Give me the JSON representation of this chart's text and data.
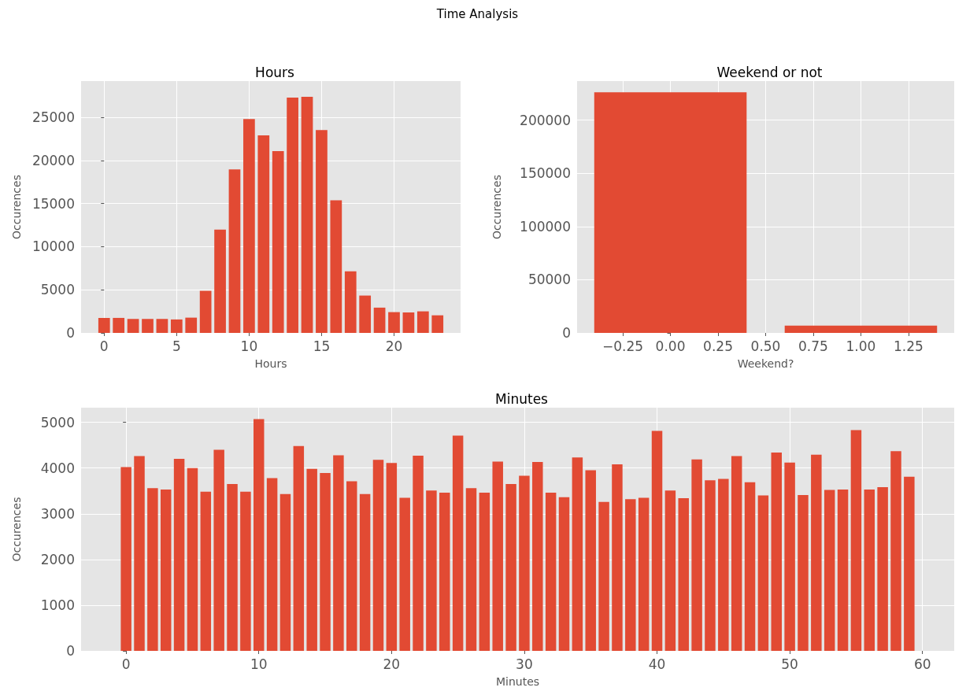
{
  "chart_data": [
    {
      "type": "other",
      "title": "Time Analysis"
    },
    {
      "type": "bar",
      "title": "Hours",
      "xlabel": "Hours",
      "ylabel": "Occurences",
      "color": "#e24a33",
      "x": [
        0,
        1,
        2,
        3,
        4,
        5,
        6,
        7,
        8,
        9,
        10,
        11,
        12,
        13,
        14,
        15,
        16,
        17,
        18,
        19,
        20,
        21,
        22,
        23
      ],
      "values": [
        1740,
        1740,
        1620,
        1620,
        1620,
        1560,
        1770,
        4880,
        11980,
        18960,
        24790,
        22900,
        21070,
        27290,
        27380,
        23510,
        15370,
        7130,
        4330,
        2930,
        2410,
        2380,
        2500,
        2040
      ],
      "xlim": [
        -1.59,
        24.59
      ],
      "xticks": [
        0,
        5,
        10,
        15,
        20
      ],
      "ylim": [
        0,
        29200
      ],
      "yticks": [
        0,
        5000,
        10000,
        15000,
        20000,
        25000
      ],
      "grid": true
    },
    {
      "type": "bar",
      "title": "Weekend or not",
      "xlabel": "Weekend?",
      "ylabel": "Occurences",
      "color": "#e24a33",
      "x": [
        0,
        1
      ],
      "values": [
        226000,
        6800
      ],
      "xlim": [
        -0.49,
        1.49
      ],
      "xticks": [
        {
          "value": -0.25,
          "label": "−0.25"
        },
        {
          "value": 0,
          "label": "0.00"
        },
        {
          "value": 0.25,
          "label": "0.25"
        },
        {
          "value": 0.5,
          "label": "0.50"
        },
        {
          "value": 0.75,
          "label": "0.75"
        },
        {
          "value": 1,
          "label": "1.00"
        },
        {
          "value": 1.25,
          "label": "1.25"
        }
      ],
      "ylim": [
        0,
        236600
      ],
      "yticks": [
        0,
        50000,
        100000,
        150000,
        200000
      ],
      "grid": true
    },
    {
      "type": "bar",
      "title": "Minutes",
      "xlabel": "Minutes",
      "ylabel": "Occurences",
      "color": "#e24a33",
      "x": [
        0,
        1,
        2,
        3,
        4,
        5,
        6,
        7,
        8,
        9,
        10,
        11,
        12,
        13,
        14,
        15,
        16,
        17,
        18,
        19,
        20,
        21,
        22,
        23,
        24,
        25,
        26,
        27,
        28,
        29,
        30,
        31,
        32,
        33,
        34,
        35,
        36,
        37,
        38,
        39,
        40,
        41,
        42,
        43,
        44,
        45,
        46,
        47,
        48,
        49,
        50,
        51,
        52,
        53,
        54,
        55,
        56,
        57,
        58,
        59
      ],
      "values": [
        4020,
        4260,
        3560,
        3530,
        4200,
        4000,
        3480,
        4400,
        3650,
        3480,
        5070,
        3780,
        3430,
        4480,
        3980,
        3890,
        4280,
        3710,
        3430,
        4180,
        4110,
        3350,
        4270,
        3510,
        3460,
        4710,
        3560,
        3460,
        4140,
        3650,
        3830,
        4130,
        3460,
        3360,
        4230,
        3950,
        3260,
        4080,
        3320,
        3350,
        4810,
        3510,
        3340,
        4190,
        3730,
        3760,
        4260,
        3690,
        3400,
        4340,
        4120,
        3410,
        4290,
        3520,
        3530,
        4830,
        3530,
        3580,
        4370,
        3810
      ],
      "xlim": [
        -3.39,
        62.39
      ],
      "xticks": [
        0,
        10,
        20,
        30,
        40,
        50,
        60
      ],
      "ylim": [
        0,
        5320
      ],
      "yticks": [
        0,
        1000,
        2000,
        3000,
        4000,
        5000
      ],
      "grid": true
    }
  ]
}
